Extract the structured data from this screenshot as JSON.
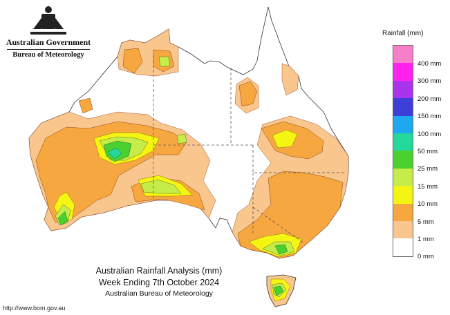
{
  "header": {
    "government": "Australian Government",
    "bureau": "Bureau of Meteorology"
  },
  "legend": {
    "title": "Rainfall (mm)",
    "labels": [
      "400 mm",
      "300 mm",
      "200 mm",
      "150 mm",
      "100 mm",
      "50 mm",
      "25 mm",
      "15 mm",
      "10 mm",
      "5 mm",
      "1 mm",
      "0 mm"
    ],
    "colors": [
      "#f77fc9",
      "#ff22ee",
      "#aa33ee",
      "#3e3ed8",
      "#1ea8f0",
      "#22d89a",
      "#4bd12f",
      "#c5ec48",
      "#f5f514",
      "#f7a73f",
      "#f9c68e",
      "#ffffff"
    ]
  },
  "caption": {
    "line1": "Australian Rainfall Analysis (mm)",
    "line2": "Week Ending 7th October 2024",
    "line3": "Australian Bureau of Meteorology"
  },
  "footer": {
    "url": "http://www.bom.gov.au"
  },
  "map": {
    "rainfall_classes": [
      "0-1 mm",
      "1-5 mm",
      "5-10 mm",
      "10-15 mm",
      "15-25 mm",
      "25-50 mm",
      "50-100 mm"
    ]
  }
}
